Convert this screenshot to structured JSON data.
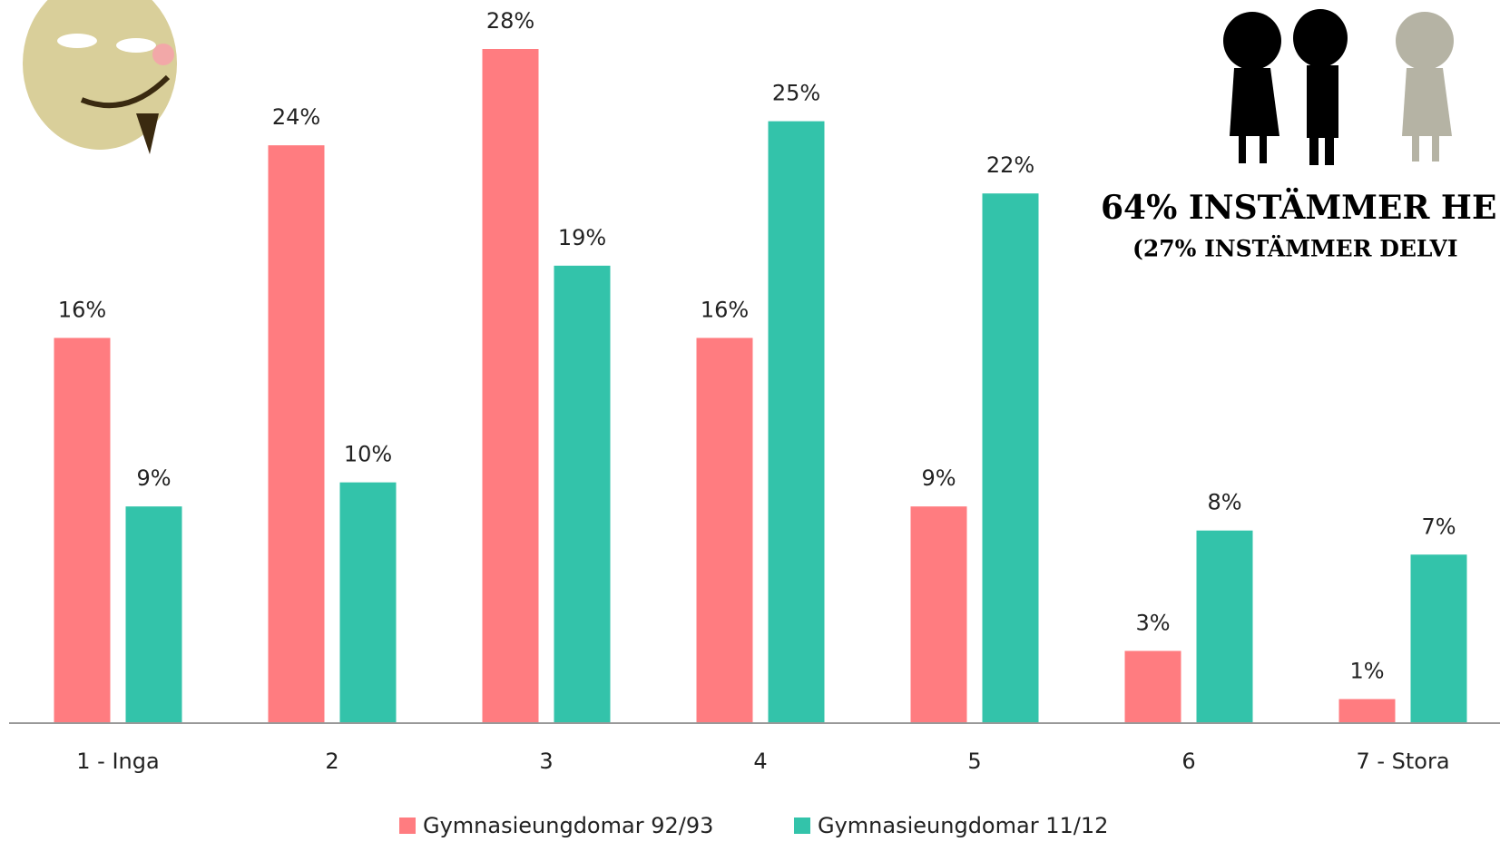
{
  "chart_data": {
    "type": "bar",
    "categories": [
      "1 - Inga",
      "2",
      "3",
      "4",
      "5",
      "6",
      "7 - Stora"
    ],
    "series": [
      {
        "name": "Gymnasieungdomar 92/93",
        "color": "#ff7c80",
        "values": [
          16,
          24,
          28,
          16,
          9,
          3,
          1
        ],
        "value_labels": [
          "16%",
          "24%",
          "28%",
          "16%",
          "9%",
          "3%",
          "1%"
        ]
      },
      {
        "name": "Gymnasieungdomar 11/12",
        "color": "#33c3aa",
        "values": [
          9,
          10,
          19,
          25,
          22,
          8,
          7
        ],
        "value_labels": [
          "9%",
          "10%",
          "19%",
          "25%",
          "22%",
          "8%",
          "7%"
        ]
      }
    ],
    "ylim": [
      0,
      28
    ],
    "legend": "bottom",
    "annotations": [
      "64% INSTÄMMER HE",
      "(27% INSTÄMMER DELVI"
    ]
  }
}
